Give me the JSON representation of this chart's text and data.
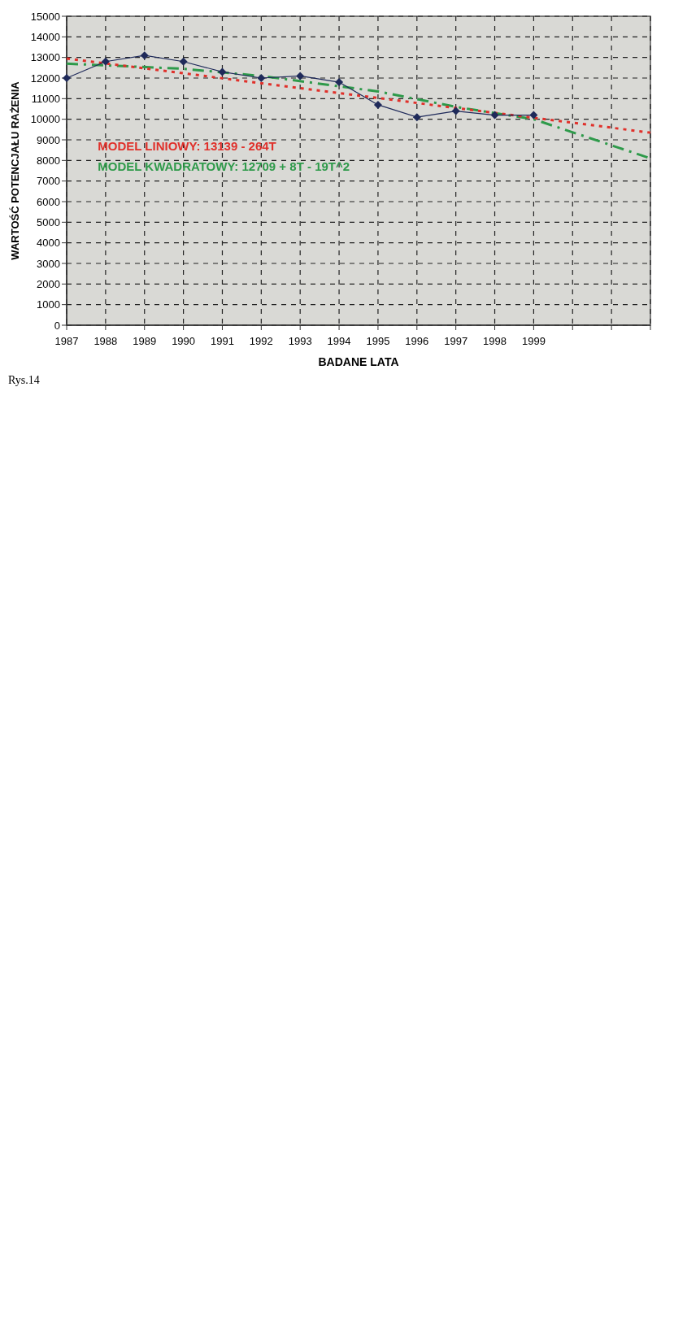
{
  "chart_data": {
    "type": "line",
    "xlabel": "BADANE LATA",
    "ylabel": "WARTOŚĆ POTENCJAŁU RAŻENIA",
    "x": [
      1987,
      1988,
      1989,
      1990,
      1991,
      1992,
      1993,
      1994,
      1995,
      1996,
      1997,
      1998,
      1999
    ],
    "series": [
      {
        "color": "#1f2a5a",
        "marker": "diamond",
        "line_style": "solid",
        "values": [
          12000,
          12800,
          13100,
          12800,
          12300,
          12000,
          12100,
          11800,
          10700,
          10100,
          10400,
          10200,
          10200
        ]
      },
      {
        "type": "line",
        "color": "#e0302a",
        "marker": "none",
        "line_style": "dotted",
        "x": [
          1987,
          2002
        ],
        "values": [
          12950,
          9350
        ]
      },
      {
        "type": "line",
        "color": "#2e9a4a",
        "marker": "none",
        "line_style": "dashed",
        "x": [
          1987,
          1990,
          1992,
          1995,
          1997,
          1999,
          2002
        ],
        "values": [
          12700,
          12450,
          12100,
          11350,
          10600,
          10000,
          8100
        ]
      }
    ],
    "xlim": [
      1987,
      2002
    ],
    "xticks": [
      1987,
      1988,
      1989,
      1990,
      1991,
      1992,
      1993,
      1994,
      1995,
      1996,
      1997,
      1998,
      1999,
      {
        "value": 2000,
        "label": null
      },
      {
        "value": 2001,
        "label": null
      },
      {
        "value": 2002,
        "label": null
      }
    ],
    "ylim": [
      0,
      15000
    ],
    "yticks": [
      0,
      1000,
      2000,
      3000,
      4000,
      5000,
      6000,
      7000,
      8000,
      9000,
      10000,
      11000,
      12000,
      13000,
      14000,
      15000
    ],
    "grid": true,
    "annotations": [
      "MODEL LINIOWY: 13139 - 264T",
      "MODEL KWADRATOWY: 12709 + 8T - 19T^2",
      "Rys.14"
    ]
  }
}
